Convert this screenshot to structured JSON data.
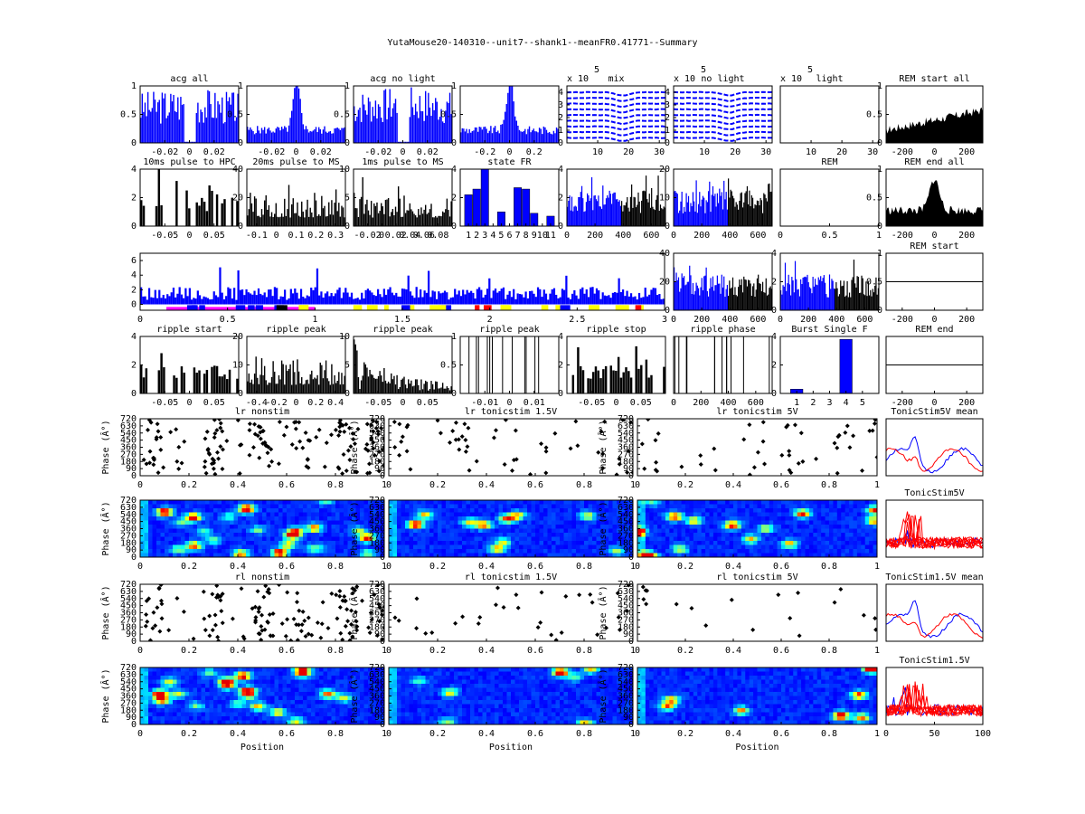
{
  "figure_title": "YutaMouse20-140310--unit7--shank1--meanFR0.41771--Summary",
  "colors": {
    "blue": "#0000ff",
    "black": "#000000",
    "magenta": "#ff00ff",
    "yellow": "#ffff00",
    "red": "#ff0000",
    "jet_low": "#0000ff",
    "jet_mid": "#00ffcc",
    "jet_high": "#ffff00"
  },
  "chart_data": [
    {
      "id": "acg_all",
      "type": "bar",
      "title": "acg all",
      "color": "#0000ff",
      "xlim": [
        -0.04,
        0.04
      ],
      "ylim": [
        0,
        1
      ],
      "xticks": [
        -0.02,
        0,
        0.02
      ],
      "yticks": [
        0,
        0.5,
        1
      ],
      "shape": "dip",
      "seed": 3
    },
    {
      "id": "acg_20ms",
      "type": "bar",
      "title": "",
      "color": "#0000ff",
      "xlim": [
        -0.04,
        0.04
      ],
      "ylim": [
        0,
        1
      ],
      "xticks": [
        -0.02,
        0,
        0.02
      ],
      "yticks": [
        0,
        0.5,
        1
      ],
      "shape": "peak",
      "seed": 5
    },
    {
      "id": "acg_no_light",
      "type": "bar",
      "title": "acg no light",
      "color": "#0000ff",
      "xlim": [
        -0.04,
        0.04
      ],
      "ylim": [
        0,
        1
      ],
      "xticks": [
        -0.02,
        0,
        0.02
      ],
      "yticks": [
        0,
        0.5,
        1
      ],
      "shape": "dip",
      "seed": 7
    },
    {
      "id": "acg_light",
      "type": "bar",
      "title": "",
      "color": "#0000ff",
      "xlim": [
        -0.4,
        0.4
      ],
      "ylim": [
        0,
        1
      ],
      "xticks": [
        -0.2,
        0,
        0.2
      ],
      "yticks": [
        0,
        0.5,
        1
      ],
      "shape": "peak",
      "seed": 9
    },
    {
      "id": "waveform_mix",
      "type": "line",
      "title": "mix",
      "multiplier": "x 10",
      "exponent": "5",
      "color": "#0000ff",
      "xlim": [
        0,
        32
      ],
      "ylim": [
        0,
        4.5
      ],
      "xticks": [
        10,
        20,
        30
      ],
      "yticks": [
        0,
        1,
        2,
        3,
        4
      ],
      "shape": "waves",
      "seed": 11
    },
    {
      "id": "waveform_no_light",
      "type": "line",
      "title": "no light",
      "multiplier": "x 10",
      "exponent": "5",
      "color": "#0000ff",
      "xlim": [
        0,
        32
      ],
      "ylim": [
        0,
        4.5
      ],
      "xticks": [
        10,
        20,
        30
      ],
      "yticks": [
        0,
        1,
        2,
        3,
        4
      ],
      "shape": "waves",
      "seed": 13
    },
    {
      "id": "waveform_light",
      "type": "line",
      "title": "light",
      "multiplier": "x 10",
      "exponent": "5",
      "color": "#0000ff",
      "xlim": [
        0,
        32
      ],
      "ylim": [
        0,
        1
      ],
      "xticks": [
        10,
        20,
        30
      ],
      "yticks": [],
      "shape": "empty",
      "seed": 15
    },
    {
      "id": "rem_start_all",
      "type": "area",
      "title": "REM start all",
      "color": "#000000",
      "xlim": [
        -300,
        300
      ],
      "ylim": [
        0,
        1
      ],
      "xticks": [
        -200,
        0,
        200
      ],
      "yticks": [
        0,
        0.5,
        1
      ],
      "shape": "rise",
      "seed": 17
    },
    {
      "id": "pulse_10ms",
      "type": "bar",
      "title": "10ms pulse to HPC",
      "color": "#000000",
      "xlim": [
        -0.1,
        0.1
      ],
      "ylim": [
        0,
        4
      ],
      "xticks": [
        -0.05,
        0,
        0.05
      ],
      "yticks": [
        0,
        2,
        4
      ],
      "shape": "sparse",
      "seed": 19
    },
    {
      "id": "pulse_20ms",
      "type": "bar",
      "title": "20ms pulse to MS",
      "color": "#000000",
      "xlim": [
        -0.15,
        0.35
      ],
      "ylim": [
        0,
        40
      ],
      "xticks": [
        -0.1,
        0,
        0.1,
        0.2,
        0.3
      ],
      "yticks": [
        0,
        20,
        40
      ],
      "shape": "noise",
      "seed": 21
    },
    {
      "id": "pulse_1ms",
      "type": "bar",
      "title": "1ms pulse to MS",
      "color": "#000000",
      "xlim": [
        -0.04,
        0.1
      ],
      "ylim": [
        0,
        10
      ],
      "xticks": [
        -0.02,
        0,
        0.02,
        0.04,
        0.06,
        0.08
      ],
      "yticks": [
        0,
        5,
        10
      ],
      "shape": "noise",
      "seed": 23
    },
    {
      "id": "state_fr",
      "type": "bar",
      "title": "state FR",
      "color": "#0000ff",
      "xlim": [
        0,
        12
      ],
      "ylim": [
        0,
        4
      ],
      "xticks": [
        1,
        2,
        3,
        4,
        5,
        6,
        7,
        8,
        9,
        10,
        11
      ],
      "yticks": [
        0,
        2,
        4
      ],
      "categories": [
        "1",
        "2",
        "3",
        "4",
        "5",
        "6",
        "7",
        "8",
        "9",
        "10",
        "11"
      ],
      "values": [
        2.2,
        2.6,
        4.0,
        0,
        1.0,
        0,
        2.7,
        2.6,
        0.9,
        0,
        0.7
      ],
      "shape": "cats",
      "seed": 25
    },
    {
      "id": "fr_time_1",
      "type": "bar",
      "title": "",
      "color": "#0000ff",
      "color2": "#000000",
      "split": 380,
      "xlim": [
        0,
        700
      ],
      "ylim": [
        0,
        4
      ],
      "xticks": [
        0,
        200,
        400,
        600
      ],
      "yticks": [
        0,
        2,
        4
      ],
      "shape": "split",
      "seed": 27
    },
    {
      "id": "fr_time_2",
      "type": "bar",
      "title": "",
      "color": "#0000ff",
      "color2": "#000000",
      "split": 380,
      "xlim": [
        0,
        700
      ],
      "ylim": [
        0,
        20
      ],
      "xticks": [
        0,
        200,
        400,
        600
      ],
      "yticks": [
        0,
        10,
        20
      ],
      "shape": "split",
      "seed": 29
    },
    {
      "id": "rem",
      "type": "bar",
      "title": "REM",
      "color": "#000000",
      "xlim": [
        0,
        1
      ],
      "ylim": [
        0,
        1
      ],
      "xticks": [
        0,
        0.5,
        1
      ],
      "yticks": [],
      "shape": "empty",
      "seed": 31
    },
    {
      "id": "rem_end_all",
      "type": "area",
      "title": "REM end all",
      "color": "#000000",
      "xlim": [
        -300,
        300
      ],
      "ylim": [
        0,
        1
      ],
      "xticks": [
        -200,
        0,
        200
      ],
      "yticks": [
        0,
        0.5,
        1
      ],
      "shape": "centerpeak",
      "seed": 33
    },
    {
      "id": "fr_session",
      "type": "bar",
      "title": "",
      "color": "#0000ff",
      "xlim": [
        0,
        3
      ],
      "ylim": [
        -0.8,
        7
      ],
      "xticks": [
        0,
        0.5,
        1,
        1.5,
        2,
        2.5,
        3
      ],
      "yticks": [
        0,
        2,
        4,
        6
      ],
      "shape": "session",
      "seed": 35
    },
    {
      "id": "fr_time_3",
      "type": "bar",
      "title": "",
      "color": "#0000ff",
      "color2": "#000000",
      "split": 380,
      "xlim": [
        0,
        700
      ],
      "ylim": [
        0,
        40
      ],
      "xticks": [
        0,
        200,
        400,
        600
      ],
      "yticks": [
        0,
        20,
        40
      ],
      "shape": "split",
      "seed": 37
    },
    {
      "id": "fr_time_4",
      "type": "bar",
      "title": "",
      "color": "#0000ff",
      "color2": "#000000",
      "split": 380,
      "xlim": [
        0,
        700
      ],
      "ylim": [
        0,
        4
      ],
      "xticks": [
        0,
        200,
        400,
        600
      ],
      "yticks": [
        0,
        2,
        4
      ],
      "shape": "split",
      "seed": 39
    },
    {
      "id": "rem_start",
      "type": "line",
      "title": "REM start",
      "color": "#000000",
      "xlim": [
        -300,
        300
      ],
      "ylim": [
        0,
        1
      ],
      "xticks": [
        -200,
        0,
        200
      ],
      "yticks": [
        0,
        0.5,
        1
      ],
      "shape": "flat",
      "seed": 41
    },
    {
      "id": "ripple_start",
      "type": "bar",
      "title": "ripple start",
      "color": "#000000",
      "xlim": [
        -0.1,
        0.1
      ],
      "ylim": [
        0,
        4
      ],
      "xticks": [
        -0.05,
        0,
        0.05
      ],
      "yticks": [
        0,
        2,
        4
      ],
      "shape": "sparse",
      "seed": 43
    },
    {
      "id": "ripple_peak_1",
      "type": "bar",
      "title": "ripple peak",
      "color": "#000000",
      "xlim": [
        -0.5,
        0.5
      ],
      "ylim": [
        0,
        20
      ],
      "xticks": [
        -0.4,
        -0.2,
        0,
        0.2,
        0.4
      ],
      "yticks": [
        0,
        10,
        20
      ],
      "shape": "noise",
      "seed": 45
    },
    {
      "id": "ripple_peak_2",
      "type": "bar",
      "title": "ripple peak",
      "color": "#000000",
      "xlim": [
        -0.1,
        0.1
      ],
      "ylim": [
        0,
        10
      ],
      "xticks": [
        -0.05,
        0,
        0.05
      ],
      "yticks": [
        0,
        5,
        10
      ],
      "shape": "decay",
      "seed": 47
    },
    {
      "id": "ripple_peak_3",
      "type": "bar",
      "title": "ripple peak",
      "color": "#000000",
      "xlim": [
        -0.02,
        0.02
      ],
      "ylim": [
        0,
        1
      ],
      "xticks": [
        -0.01,
        0,
        0.01
      ],
      "yticks": [
        0,
        0.5,
        1
      ],
      "shape": "spikes",
      "seed": 49
    },
    {
      "id": "ripple_stop",
      "type": "bar",
      "title": "ripple stop",
      "color": "#000000",
      "xlim": [
        -0.1,
        0.1
      ],
      "ylim": [
        0,
        4
      ],
      "xticks": [
        -0.05,
        0,
        0.05
      ],
      "yticks": [
        0,
        2,
        4
      ],
      "shape": "sparse",
      "seed": 51
    },
    {
      "id": "ripple_phase",
      "type": "bar",
      "title": "ripple phase",
      "color": "#000000",
      "xlim": [
        0,
        720
      ],
      "ylim": [
        0,
        1
      ],
      "xticks": [
        0,
        200,
        400,
        600
      ],
      "yticks": [],
      "shape": "spikes",
      "seed": 53
    },
    {
      "id": "burst_single",
      "type": "bar",
      "title": "Burst Single F",
      "color": "#0000ff",
      "xlim": [
        0,
        6
      ],
      "ylim": [
        0,
        4
      ],
      "xticks": [
        1,
        2,
        3,
        4,
        5
      ],
      "yticks": [
        0,
        2,
        4
      ],
      "categories": [
        "1",
        "4"
      ],
      "values": [
        0.3,
        3.8
      ],
      "shape": "burst",
      "seed": 55
    },
    {
      "id": "rem_end",
      "type": "line",
      "title": "REM end",
      "color": "#000000",
      "xlim": [
        -300,
        300
      ],
      "ylim": [
        0,
        1
      ],
      "xticks": [
        -200,
        0,
        200
      ],
      "yticks": [],
      "shape": "flat",
      "seed": 57
    },
    {
      "id": "lr_nonstim",
      "type": "scatter",
      "title": "lr nonstim",
      "color": "#000000",
      "xlabel": "",
      "ylabel": "Phase (Â°)",
      "xlim": [
        0,
        1
      ],
      "ylim": [
        0,
        720
      ],
      "xticks": [
        0,
        0.2,
        0.4,
        0.6,
        0.8,
        1
      ],
      "yticks": [
        0,
        90,
        180,
        270,
        360,
        450,
        540,
        630,
        720
      ],
      "shape": "scatter",
      "density": 1.0,
      "seed": 59
    },
    {
      "id": "lr_tonicstim_15v",
      "type": "scatter",
      "title": "lr tonicstim 1.5V",
      "color": "#000000",
      "xlabel": "",
      "ylabel": "Phase (Â°)",
      "xlim": [
        0,
        1
      ],
      "ylim": [
        0,
        720
      ],
      "xticks": [
        0,
        0.2,
        0.4,
        0.6,
        0.8,
        1
      ],
      "yticks": [
        0,
        90,
        180,
        270,
        360,
        450,
        540,
        630,
        720
      ],
      "shape": "scatter",
      "density": 0.35,
      "seed": 61
    },
    {
      "id": "lr_tonicstim_5v",
      "type": "scatter",
      "title": "lr tonicstim 5V",
      "color": "#000000",
      "xlabel": "",
      "ylabel": "Phase (Â°)",
      "xlim": [
        0,
        1
      ],
      "ylim": [
        0,
        720
      ],
      "xticks": [
        0,
        0.2,
        0.4,
        0.6,
        0.8,
        1
      ],
      "yticks": [
        0,
        90,
        180,
        270,
        360,
        450,
        540,
        630,
        720
      ],
      "shape": "scatter",
      "density": 0.3,
      "seed": 63
    },
    {
      "id": "tonicstim5v_mean",
      "type": "line",
      "title": "TonicStim5V mean",
      "color": "#0000ff",
      "color2": "#ff0000",
      "xlim": [
        0,
        100
      ],
      "ylim": [
        0,
        1
      ],
      "xticks": [],
      "yticks": [],
      "shape": "tuning",
      "seed": 65
    },
    {
      "id": "lr_nonstim_map",
      "type": "heatmap",
      "title": "",
      "ylabel": "Phase (Â°)",
      "xlim": [
        0,
        1
      ],
      "ylim": [
        0,
        720
      ],
      "xticks": [
        0,
        0.2,
        0.4,
        0.6,
        0.8,
        1
      ],
      "yticks": [
        0,
        90,
        180,
        270,
        360,
        450,
        540,
        630,
        720
      ],
      "shape": "heat",
      "density": 1.0,
      "seed": 67
    },
    {
      "id": "lr_tonicstim_15v_map",
      "type": "heatmap",
      "title": "",
      "ylabel": "Phase (Â°)",
      "xlim": [
        0,
        1
      ],
      "ylim": [
        0,
        720
      ],
      "xticks": [
        0,
        0.2,
        0.4,
        0.6,
        0.8,
        1
      ],
      "yticks": [
        0,
        90,
        180,
        270,
        360,
        450,
        540,
        630,
        720
      ],
      "shape": "heat",
      "density": 0.4,
      "seed": 69
    },
    {
      "id": "lr_tonicstim_5v_map",
      "type": "heatmap",
      "title": "",
      "ylabel": "Phase (Â°)",
      "xlim": [
        0,
        1
      ],
      "ylim": [
        0,
        720
      ],
      "xticks": [
        0,
        0.2,
        0.4,
        0.6,
        0.8,
        1
      ],
      "yticks": [
        0,
        90,
        180,
        270,
        360,
        450,
        540,
        630,
        720
      ],
      "shape": "heat",
      "density": 0.6,
      "seed": 71
    },
    {
      "id": "tonicstim5v",
      "type": "line",
      "title": "TonicStim5V",
      "color": "#0000ff",
      "color2": "#ff0000",
      "xlim": [
        0,
        100
      ],
      "ylim": [
        0,
        1
      ],
      "xticks": [],
      "yticks": [],
      "shape": "multituning",
      "seed": 73
    },
    {
      "id": "rl_nonstim",
      "type": "scatter",
      "title": "rl nonstim",
      "color": "#000000",
      "ylabel": "Phase (Â°)",
      "xlim": [
        0,
        1
      ],
      "ylim": [
        0,
        720
      ],
      "xticks": [
        0,
        0.2,
        0.4,
        0.6,
        0.8,
        1
      ],
      "yticks": [
        0,
        90,
        180,
        270,
        360,
        450,
        540,
        630,
        720
      ],
      "shape": "scatter",
      "density": 0.9,
      "seed": 75
    },
    {
      "id": "rl_tonicstim_15v",
      "type": "scatter",
      "title": "rl tonicstim 1.5V",
      "color": "#000000",
      "ylabel": "Phase (Â°)",
      "xlim": [
        0,
        1
      ],
      "ylim": [
        0,
        720
      ],
      "xticks": [
        0,
        0.2,
        0.4,
        0.6,
        0.8,
        1
      ],
      "yticks": [
        0,
        90,
        180,
        270,
        360,
        450,
        540,
        630,
        720
      ],
      "shape": "scatter",
      "density": 0.2,
      "seed": 77
    },
    {
      "id": "rl_tonicstim_5v",
      "type": "scatter",
      "title": "rl tonicstim 5V",
      "color": "#000000",
      "ylabel": "Phase (Â°)",
      "xlim": [
        0,
        1
      ],
      "ylim": [
        0,
        720
      ],
      "xticks": [
        0,
        0.2,
        0.4,
        0.6,
        0.8,
        1
      ],
      "yticks": [
        0,
        90,
        180,
        270,
        360,
        450,
        540,
        630,
        720
      ],
      "shape": "scatter",
      "density": 0.12,
      "seed": 79
    },
    {
      "id": "tonicstim15v_mean",
      "type": "line",
      "title": "TonicStim1.5V mean",
      "color": "#0000ff",
      "color2": "#ff0000",
      "xlim": [
        0,
        100
      ],
      "ylim": [
        0,
        1
      ],
      "xticks": [],
      "yticks": [],
      "shape": "tuning",
      "seed": 81
    },
    {
      "id": "rl_nonstim_map",
      "type": "heatmap",
      "title": "",
      "xlabel": "Position",
      "ylabel": "Phase (Â°)",
      "xlim": [
        0,
        1
      ],
      "ylim": [
        0,
        720
      ],
      "xticks": [
        0,
        0.2,
        0.4,
        0.6,
        0.8,
        1
      ],
      "yticks": [
        0,
        90,
        180,
        270,
        360,
        450,
        540,
        630,
        720
      ],
      "shape": "heat",
      "density": 0.9,
      "seed": 83
    },
    {
      "id": "rl_tonicstim_15v_map",
      "type": "heatmap",
      "title": "",
      "xlabel": "Position",
      "ylabel": "Phase (Â°)",
      "xlim": [
        0,
        1
      ],
      "ylim": [
        0,
        720
      ],
      "xticks": [
        0,
        0.2,
        0.4,
        0.6,
        0.8,
        1
      ],
      "yticks": [
        0,
        90,
        180,
        270,
        360,
        450,
        540,
        630,
        720
      ],
      "shape": "heat",
      "density": 0.2,
      "seed": 85
    },
    {
      "id": "rl_tonicstim_5v_map",
      "type": "heatmap",
      "title": "",
      "xlabel": "Position",
      "ylabel": "Phase (Â°)",
      "xlim": [
        0,
        1
      ],
      "ylim": [
        0,
        720
      ],
      "xticks": [
        0,
        0.2,
        0.4,
        0.6,
        0.8,
        1
      ],
      "yticks": [
        0,
        90,
        180,
        270,
        360,
        450,
        540,
        630,
        720
      ],
      "shape": "heat",
      "density": 0.25,
      "seed": 87
    },
    {
      "id": "tonicstim15v",
      "type": "line",
      "title": "TonicStim1.5V",
      "color": "#0000ff",
      "color2": "#ff0000",
      "xlim": [
        0,
        100
      ],
      "ylim": [
        0,
        1
      ],
      "xticks": [
        0,
        50,
        100
      ],
      "yticks": [],
      "shape": "multituning",
      "seed": 89
    }
  ]
}
